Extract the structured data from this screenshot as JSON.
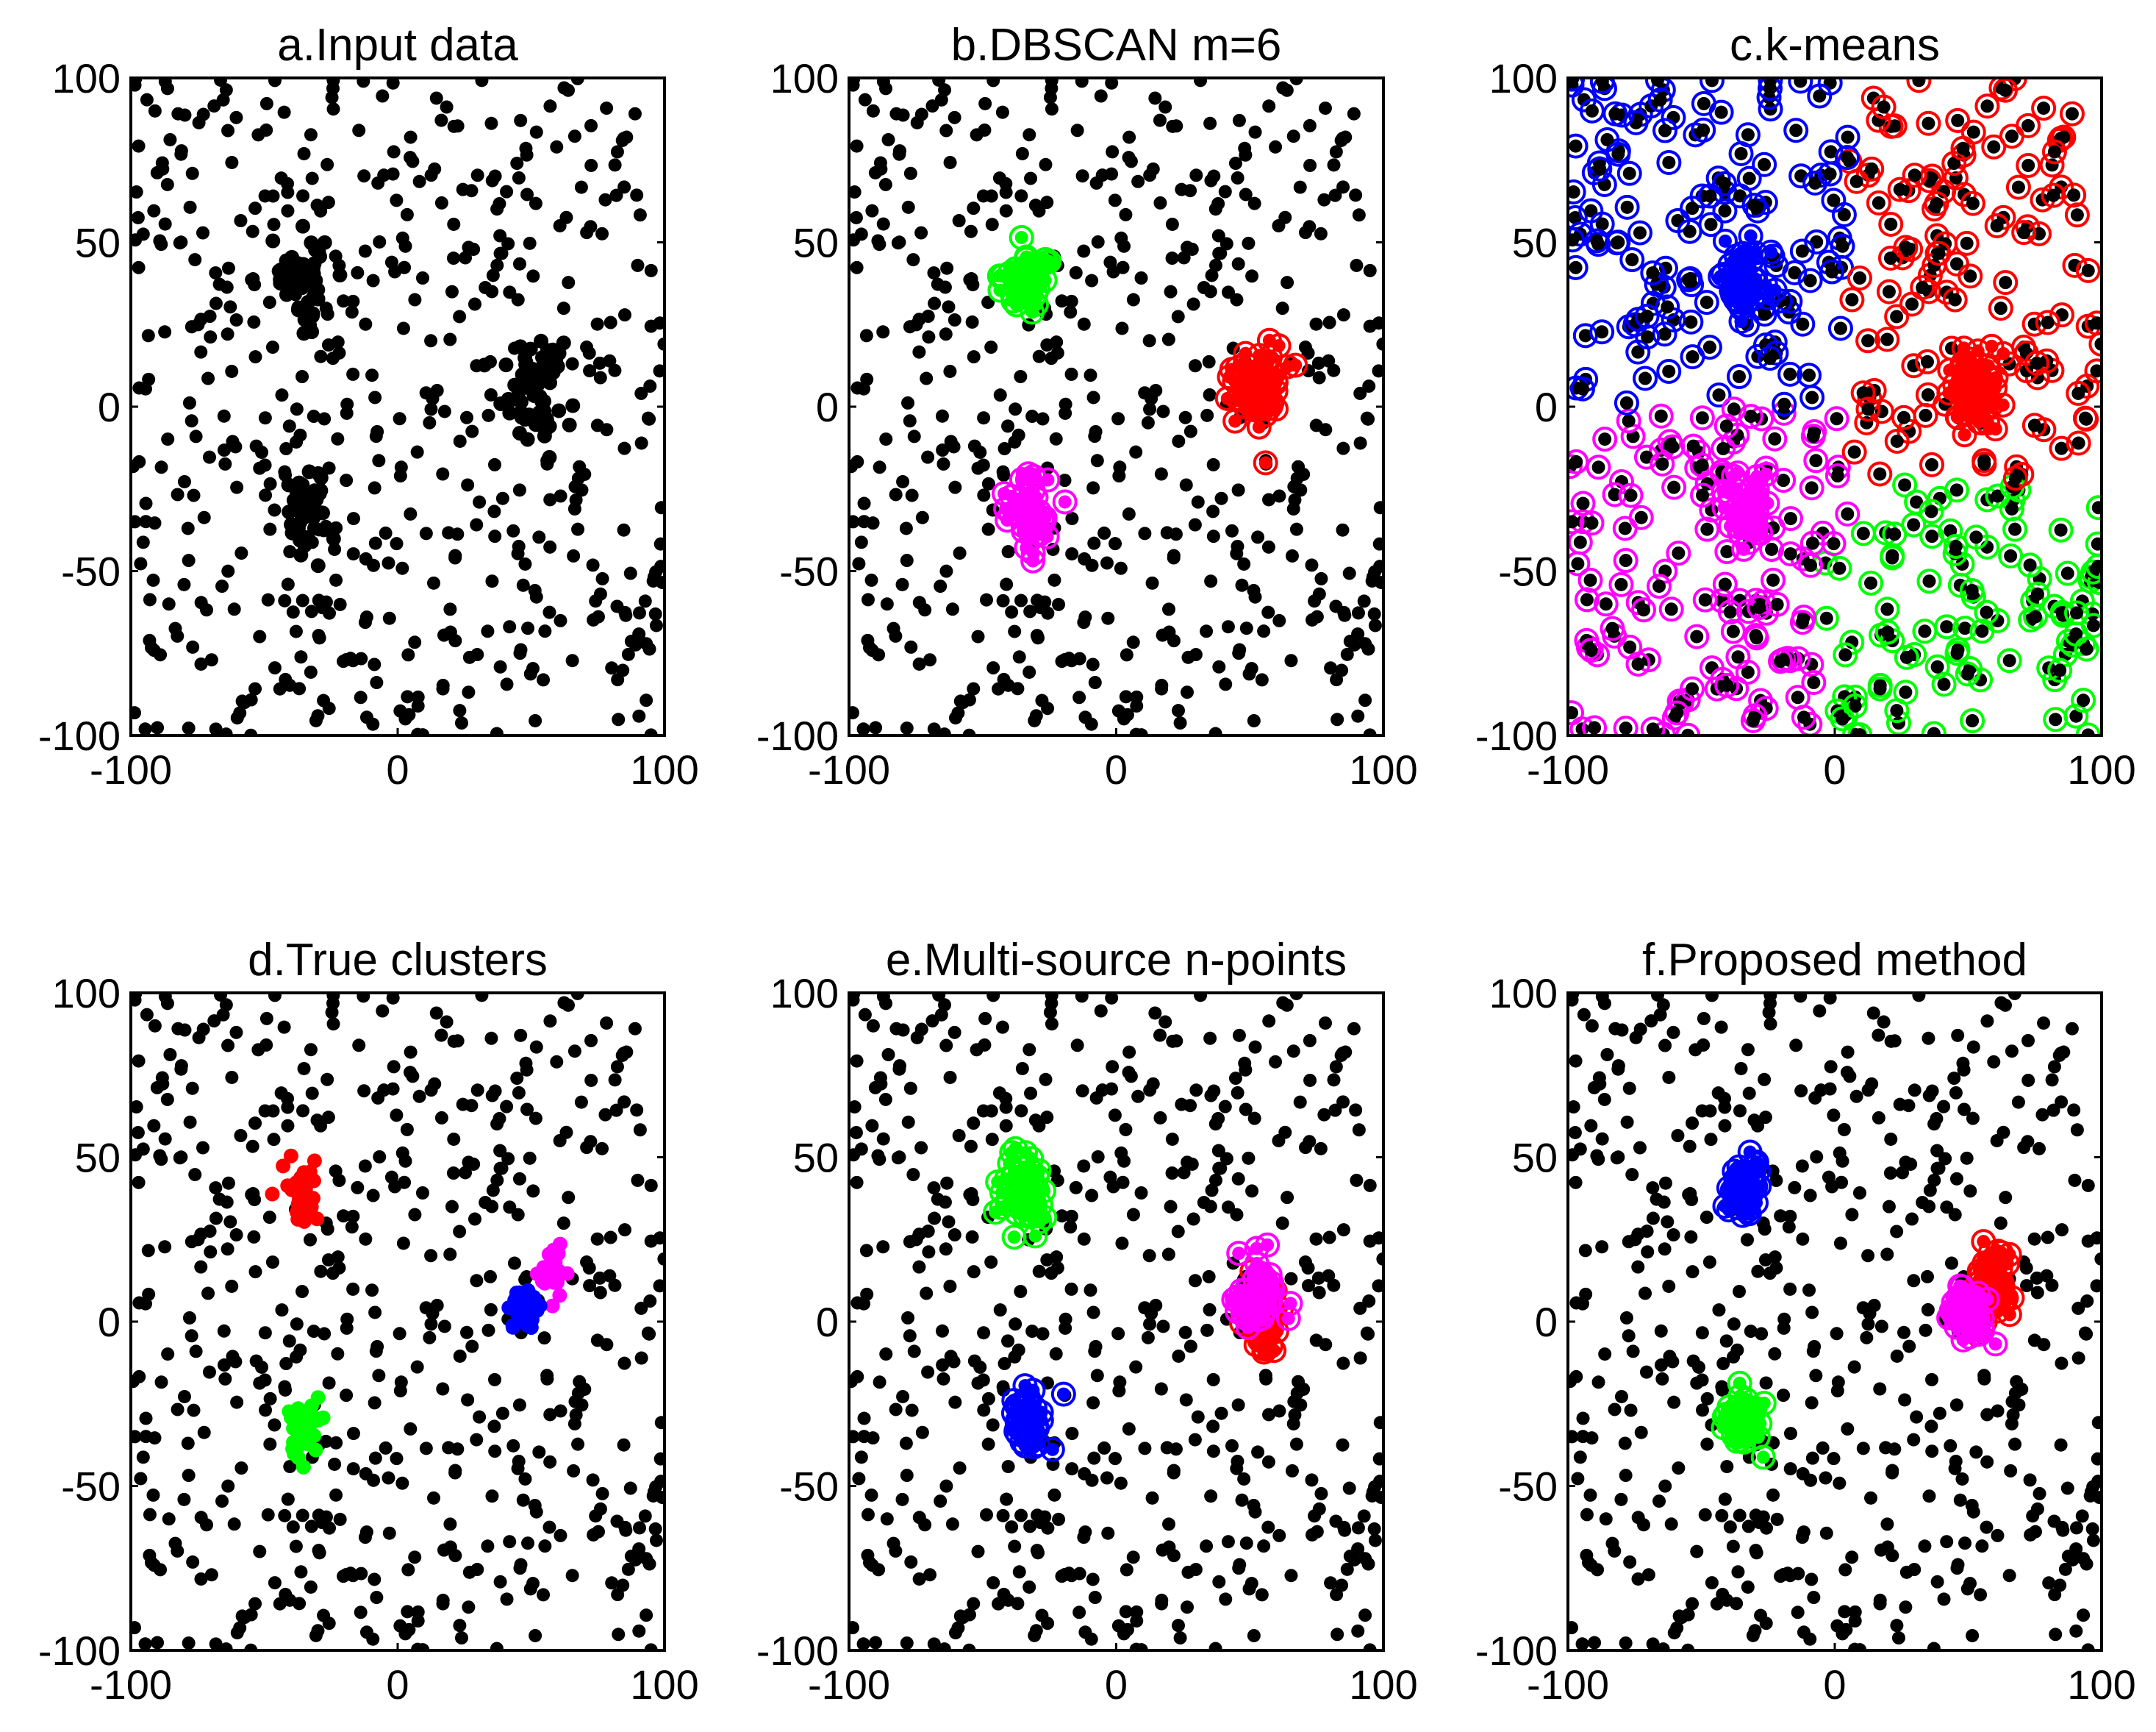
{
  "chart_data": [
    {
      "type": "scatter",
      "title": "a.Input data",
      "xlim": [
        -100,
        100
      ],
      "ylim": [
        -100,
        100
      ],
      "xticks": [
        -100,
        0,
        100
      ],
      "yticks": [
        -100,
        -50,
        0,
        50,
        100
      ],
      "grid": false,
      "background_seed": 7,
      "background_n": 520,
      "clusters": [
        {
          "center": [
            -35,
            38
          ],
          "n": 48,
          "spread": 8,
          "style": "filled",
          "color": "#000000"
        },
        {
          "center": [
            52,
            5
          ],
          "n": 60,
          "spread": 9,
          "style": "filled",
          "color": "#000000"
        },
        {
          "center": [
            -35,
            -32
          ],
          "n": 45,
          "spread": 7,
          "style": "filled",
          "color": "#000000"
        }
      ]
    },
    {
      "type": "scatter",
      "title": "b.DBSCAN m=6",
      "xlim": [
        -100,
        100
      ],
      "ylim": [
        -100,
        100
      ],
      "xticks": [
        -100,
        0,
        100
      ],
      "yticks": [
        -100,
        -50,
        0,
        50,
        100
      ],
      "grid": false,
      "background_seed": 7,
      "background_n": 520,
      "clusters": [
        {
          "center": [
            -35,
            40
          ],
          "n": 45,
          "spread": 6,
          "style": "ring",
          "color": "#00ff00"
        },
        {
          "center": [
            53,
            5
          ],
          "n": 60,
          "spread": 7,
          "style": "ring",
          "color": "#ff0000"
        },
        {
          "center": [
            -33,
            -32
          ],
          "n": 42,
          "spread": 6,
          "style": "ring",
          "color": "#ff00ff"
        }
      ]
    },
    {
      "type": "scatter",
      "title": "c.k-means",
      "xlim": [
        -100,
        100
      ],
      "ylim": [
        -100,
        100
      ],
      "xticks": [
        -100,
        0,
        100
      ],
      "yticks": [
        -100,
        -50,
        0,
        50,
        100
      ],
      "grid": false,
      "background_seed": 7,
      "background_n": 520,
      "partition": [
        {
          "label": "top-left",
          "color": "#0000ff"
        },
        {
          "label": "right",
          "color": "#ff0000"
        },
        {
          "label": "bottom-left",
          "color": "#ff00ff"
        },
        {
          "label": "bottom-right",
          "color": "#00ff00"
        }
      ],
      "clusters": [
        {
          "center": [
            -35,
            40
          ],
          "n": 45,
          "spread": 6,
          "style": "ring",
          "color": "#0000ff"
        },
        {
          "center": [
            53,
            5
          ],
          "n": 60,
          "spread": 7,
          "style": "ring",
          "color": "#ff0000"
        },
        {
          "center": [
            -33,
            -32
          ],
          "n": 42,
          "spread": 6,
          "style": "ring",
          "color": "#ff00ff"
        }
      ]
    },
    {
      "type": "scatter",
      "title": "d.True clusters",
      "xlim": [
        -100,
        100
      ],
      "ylim": [
        -100,
        100
      ],
      "xticks": [
        -100,
        0,
        100
      ],
      "yticks": [
        -100,
        -50,
        0,
        50,
        100
      ],
      "grid": false,
      "background_seed": 7,
      "background_n": 520,
      "clusters": [
        {
          "center": [
            -35,
            40
          ],
          "n": 40,
          "spread": 5,
          "style": "filled",
          "color": "#ff0000"
        },
        {
          "center": [
            58,
            14
          ],
          "n": 22,
          "spread": 4,
          "style": "filled",
          "color": "#ff00ff"
        },
        {
          "center": [
            48,
            3
          ],
          "n": 40,
          "spread": 4,
          "style": "filled",
          "color": "#0000ff"
        },
        {
          "center": [
            -35,
            -32
          ],
          "n": 38,
          "spread": 5,
          "style": "filled",
          "color": "#00ff00"
        }
      ]
    },
    {
      "type": "scatter",
      "title": "e.Multi-source n-points",
      "xlim": [
        -100,
        100
      ],
      "ylim": [
        -100,
        100
      ],
      "xticks": [
        -100,
        0,
        100
      ],
      "yticks": [
        -100,
        -50,
        0,
        50,
        100
      ],
      "grid": false,
      "background_seed": 7,
      "background_n": 520,
      "clusters": [
        {
          "center": [
            -34,
            40
          ],
          "n": 45,
          "spread": 6,
          "style": "ring",
          "color": "#00ff00"
        },
        {
          "center": [
            55,
            2
          ],
          "n": 35,
          "spread": 6,
          "style": "ring",
          "color": "#ff0000"
        },
        {
          "center": [
            53,
            8
          ],
          "n": 50,
          "spread": 6,
          "style": "ring",
          "color": "#ff00ff"
        },
        {
          "center": [
            -33,
            -30
          ],
          "n": 42,
          "spread": 6,
          "style": "ring",
          "color": "#0000ff"
        }
      ]
    },
    {
      "type": "scatter",
      "title": "f.Proposed method",
      "xlim": [
        -100,
        100
      ],
      "ylim": [
        -100,
        100
      ],
      "xticks": [
        -100,
        0,
        100
      ],
      "yticks": [
        -100,
        -50,
        0,
        50,
        100
      ],
      "grid": false,
      "background_seed": 7,
      "background_n": 520,
      "clusters": [
        {
          "center": [
            -34,
            40
          ],
          "n": 45,
          "spread": 5,
          "style": "ring",
          "color": "#0000ff"
        },
        {
          "center": [
            58,
            10
          ],
          "n": 50,
          "spread": 6,
          "style": "ring",
          "color": "#ff0000"
        },
        {
          "center": [
            50,
            2
          ],
          "n": 45,
          "spread": 5,
          "style": "ring",
          "color": "#ff00ff"
        },
        {
          "center": [
            -35,
            -30
          ],
          "n": 42,
          "spread": 5,
          "style": "ring",
          "color": "#00ff00"
        }
      ]
    }
  ]
}
